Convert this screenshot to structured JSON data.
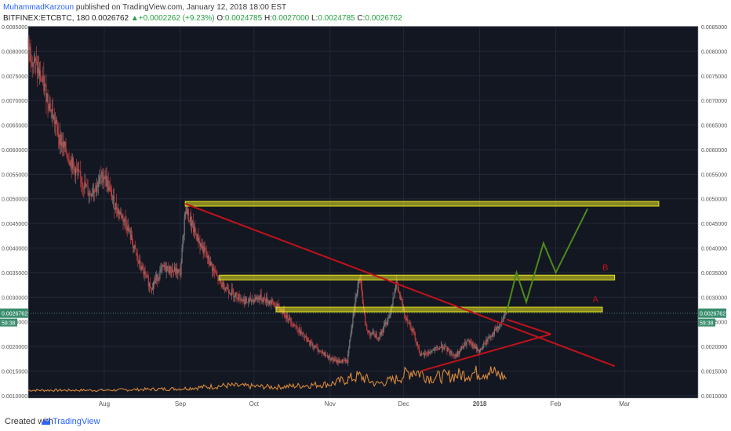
{
  "header": {
    "author": "MuhammadKarzoun",
    "published": "published on TradingView.com, January 12, 2018 18:00 EST",
    "symbol": "BITFINEX:ETCBTC, 180",
    "last": "0.0026762",
    "change": "+0.0002262 (+9.23%)",
    "open_label": "O:",
    "open": "0.0024785",
    "high_label": "H:",
    "high": "0.0027000",
    "low_label": "L:",
    "low": "0.0024785",
    "close_label": "C:",
    "close": "0.0026762"
  },
  "footer": {
    "created": "Created with",
    "brand": "TradingView"
  },
  "colors": {
    "background": "#131722",
    "up": "#7a7a7a",
    "down": "#c23b3b",
    "volume": "#d8893a",
    "support": "#e8e520",
    "trend": "#c0121a",
    "projection": "#4f8a18",
    "price_tag": "#3b8e6e"
  },
  "chart_data": {
    "type": "candlestick",
    "y_axis": {
      "min": 0.00095,
      "max": 0.0085,
      "step": 0.0005,
      "tick_labels": [
        "0.0010000",
        "0.0015000",
        "0.0020000",
        "0.0025000",
        "0.0030000",
        "0.0035000",
        "0.0040000",
        "0.0045000",
        "0.0050000",
        "0.0055000",
        "0.0060000",
        "0.0065000",
        "0.0070000",
        "0.0075000",
        "0.0080000",
        "0.0085000"
      ],
      "current_price": "0.0026762",
      "countdown": "59:38"
    },
    "x_axis": {
      "labels": [
        {
          "label": "Aug",
          "date": "2017-08-01"
        },
        {
          "label": "Sep",
          "date": "2017-09-01"
        },
        {
          "label": "Oct",
          "date": "2017-10-01"
        },
        {
          "label": "Nov",
          "date": "2017-11-01"
        },
        {
          "label": "Dec",
          "date": "2017-12-01"
        },
        {
          "label": "2018",
          "date": "2018-01-01"
        },
        {
          "label": "Feb",
          "date": "2018-02-01"
        },
        {
          "label": "Mar",
          "date": "2018-03-01"
        }
      ]
    },
    "price_path": [
      [
        "2017-07-01",
        0.0081
      ],
      [
        "2017-07-08",
        0.0072
      ],
      [
        "2017-07-14",
        0.0062
      ],
      [
        "2017-07-20",
        0.0056
      ],
      [
        "2017-07-26",
        0.0051
      ],
      [
        "2017-08-01",
        0.0055
      ],
      [
        "2017-08-05",
        0.0049
      ],
      [
        "2017-08-10",
        0.0045
      ],
      [
        "2017-08-15",
        0.0037
      ],
      [
        "2017-08-20",
        0.0032
      ],
      [
        "2017-08-25",
        0.0036
      ],
      [
        "2017-09-01",
        0.0035
      ],
      [
        "2017-09-03",
        0.0048
      ],
      [
        "2017-09-07",
        0.0043
      ],
      [
        "2017-09-12",
        0.0038
      ],
      [
        "2017-09-17",
        0.0033
      ],
      [
        "2017-09-22",
        0.0031
      ],
      [
        "2017-09-28",
        0.0029
      ],
      [
        "2017-10-03",
        0.003
      ],
      [
        "2017-10-08",
        0.0029
      ],
      [
        "2017-10-13",
        0.0027
      ],
      [
        "2017-10-18",
        0.0024
      ],
      [
        "2017-10-23",
        0.0021
      ],
      [
        "2017-10-28",
        0.0019
      ],
      [
        "2017-11-03",
        0.0017
      ],
      [
        "2017-11-08",
        0.0017
      ],
      [
        "2017-11-11",
        0.0029
      ],
      [
        "2017-11-13",
        0.0034
      ],
      [
        "2017-11-16",
        0.0023
      ],
      [
        "2017-11-21",
        0.0022
      ],
      [
        "2017-11-25",
        0.0026
      ],
      [
        "2017-11-28",
        0.0033
      ],
      [
        "2017-12-01",
        0.0027
      ],
      [
        "2017-12-05",
        0.0023
      ],
      [
        "2017-12-08",
        0.0018
      ],
      [
        "2017-12-12",
        0.0019
      ],
      [
        "2017-12-17",
        0.002
      ],
      [
        "2017-12-22",
        0.0018
      ],
      [
        "2017-12-27",
        0.0021
      ],
      [
        "2018-01-01",
        0.0019
      ],
      [
        "2018-01-05",
        0.0022
      ],
      [
        "2018-01-09",
        0.0024
      ],
      [
        "2018-01-12",
        0.0026762
      ]
    ],
    "volume_path": [
      [
        "2017-07-01",
        0.1
      ],
      [
        "2017-08-01",
        0.1
      ],
      [
        "2017-09-01",
        0.15
      ],
      [
        "2017-09-20",
        0.25
      ],
      [
        "2017-10-10",
        0.2
      ],
      [
        "2017-11-01",
        0.3
      ],
      [
        "2017-11-13",
        0.55
      ],
      [
        "2017-11-20",
        0.3
      ],
      [
        "2017-11-28",
        0.45
      ],
      [
        "2017-12-05",
        0.75
      ],
      [
        "2017-12-12",
        0.5
      ],
      [
        "2017-12-25",
        0.6
      ],
      [
        "2018-01-05",
        0.7
      ],
      [
        "2018-01-12",
        0.5
      ]
    ],
    "annotations": [
      {
        "kind": "support_band",
        "price": 0.0049,
        "from": "2017-09-03",
        "to": "2018-03-15"
      },
      {
        "kind": "support_band",
        "price": 0.0034,
        "from": "2017-09-17",
        "to": "2018-02-25"
      },
      {
        "kind": "support_band",
        "price": 0.00275,
        "from": "2017-10-10",
        "to": "2018-02-20"
      },
      {
        "kind": "trendline",
        "points": [
          [
            "2017-09-03",
            0.0049
          ],
          [
            "2018-02-25",
            0.0016
          ]
        ]
      },
      {
        "kind": "trendline",
        "points": [
          [
            "2017-12-08",
            0.0015
          ],
          [
            "2018-01-30",
            0.00225
          ]
        ]
      },
      {
        "kind": "trendline",
        "points": [
          [
            "2018-01-12",
            0.00255
          ],
          [
            "2018-01-30",
            0.00225
          ]
        ]
      },
      {
        "kind": "projection",
        "points": [
          [
            "2018-01-12",
            0.0027
          ],
          [
            "2018-01-16",
            0.0035
          ],
          [
            "2018-01-20",
            0.0029
          ],
          [
            "2018-01-27",
            0.0041
          ],
          [
            "2018-02-01",
            0.0035
          ],
          [
            "2018-02-14",
            0.0048
          ]
        ]
      },
      {
        "kind": "label",
        "text": "A",
        "date": "2018-02-16",
        "price": 0.0029
      },
      {
        "kind": "label",
        "text": "B",
        "date": "2018-02-20",
        "price": 0.00355
      }
    ]
  }
}
